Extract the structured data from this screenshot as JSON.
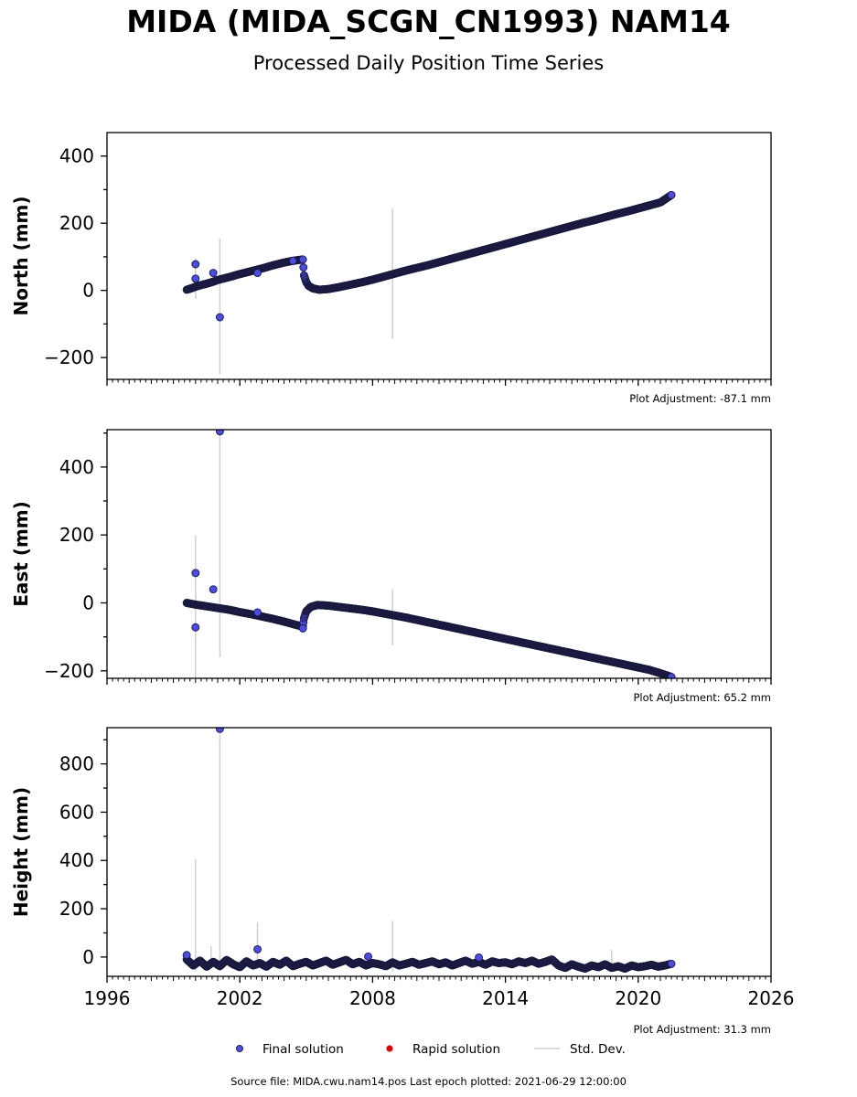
{
  "title": "MIDA (MIDA_SCGN_CN1993) NAM14",
  "subtitle": "Processed Daily Position Time Series",
  "footer": "Source file: MIDA.cwu.nam14.pos  Last epoch plotted: 2021-06-29 12:00:00",
  "colors": {
    "final": "#4b4be6",
    "final_edge": "#1a1a40",
    "rapid": "#e00000",
    "stddev": "#d0d0d0",
    "axis": "#000000"
  },
  "legend": [
    {
      "label": "Final solution",
      "marker": "final"
    },
    {
      "label": "Rapid solution",
      "marker": "rapid"
    },
    {
      "label": "Std. Dev.",
      "marker": "stddev"
    }
  ],
  "chart_data": [
    {
      "type": "scatter",
      "ylabel": "North (mm)",
      "adjustment": "Plot Adjustment: -87.1 mm",
      "xlim": [
        1996,
        2026
      ],
      "ylim": [
        -265,
        470
      ],
      "yticks": [
        -200,
        0,
        200,
        400
      ],
      "yticklabels": [
        "−200",
        "0",
        "200",
        "400"
      ],
      "xticks": [
        1996,
        2002,
        2008,
        2014,
        2020,
        2026
      ],
      "xticklabels": [],
      "series": [
        {
          "x": [
            1999.6,
            1999.8,
            2000.0,
            2000.2,
            2000.5,
            2000.8,
            2001.0,
            2001.3,
            2001.6,
            2001.9,
            2002.2,
            2002.5,
            2002.8,
            2003.1,
            2003.4,
            2003.7,
            2004.0,
            2004.3,
            2004.6,
            2004.85,
            2004.9,
            2005.0,
            2005.1,
            2005.3,
            2005.6,
            2006.0,
            2006.5,
            2007.0,
            2007.5,
            2008.0,
            2008.5,
            2009.0,
            2009.5,
            2010.0,
            2010.5,
            2011.0,
            2011.5,
            2012.0,
            2012.5,
            2013.0,
            2013.5,
            2014.0,
            2014.5,
            2015.0,
            2015.5,
            2016.0,
            2016.5,
            2017.0,
            2017.5,
            2018.0,
            2018.5,
            2019.0,
            2019.5,
            2020.0,
            2020.5,
            2021.0,
            2021.5
          ],
          "y": [
            2,
            6,
            11,
            15,
            20,
            26,
            31,
            36,
            41,
            47,
            52,
            57,
            62,
            67,
            73,
            78,
            83,
            87,
            90,
            92,
            45,
            25,
            14,
            6,
            2,
            4,
            10,
            17,
            24,
            32,
            41,
            50,
            59,
            67,
            75,
            84,
            93,
            102,
            111,
            120,
            129,
            138,
            147,
            156,
            165,
            174,
            183,
            192,
            201,
            209,
            218,
            227,
            235,
            244,
            253,
            262,
            284
          ]
        }
      ],
      "outliers": {
        "x": [
          2000.0,
          2000.0,
          2000.8,
          2001.1,
          2002.8,
          2004.4
        ],
        "y": [
          78,
          35,
          52,
          -80,
          52,
          88
        ]
      },
      "stddev_bars": [
        {
          "x": 2000.0,
          "y0": -25,
          "y1": 95
        },
        {
          "x": 2001.1,
          "y0": -250,
          "y1": 155
        },
        {
          "x": 2008.9,
          "y0": -145,
          "y1": 245
        }
      ]
    },
    {
      "type": "scatter",
      "ylabel": "East (mm)",
      "adjustment": "Plot Adjustment: 65.2 mm",
      "xlim": [
        1996,
        2026
      ],
      "ylim": [
        -222,
        510
      ],
      "yticks": [
        -200,
        0,
        200,
        400
      ],
      "yticklabels": [
        "−200",
        "0",
        "200",
        "400"
      ],
      "xticks": [
        1996,
        2002,
        2008,
        2014,
        2020,
        2026
      ],
      "xticklabels": [],
      "series": [
        {
          "x": [
            1999.6,
            2000.0,
            2000.5,
            2001.0,
            2001.5,
            2002.0,
            2002.5,
            2003.0,
            2003.5,
            2004.0,
            2004.5,
            2004.85,
            2004.9,
            2005.0,
            2005.2,
            2005.5,
            2006.0,
            2006.5,
            2007.0,
            2007.5,
            2008.0,
            2008.5,
            2009.0,
            2009.5,
            2010.0,
            2010.5,
            2011.0,
            2011.5,
            2012.0,
            2012.5,
            2013.0,
            2013.5,
            2014.0,
            2014.5,
            2015.0,
            2015.5,
            2016.0,
            2016.5,
            2017.0,
            2017.5,
            2018.0,
            2018.5,
            2019.0,
            2019.5,
            2020.0,
            2020.5,
            2021.0,
            2021.5
          ],
          "y": [
            0,
            -5,
            -10,
            -15,
            -20,
            -27,
            -33,
            -40,
            -47,
            -55,
            -64,
            -70,
            -45,
            -25,
            -12,
            -6,
            -8,
            -12,
            -16,
            -20,
            -25,
            -31,
            -37,
            -43,
            -50,
            -57,
            -64,
            -71,
            -78,
            -85,
            -92,
            -99,
            -106,
            -113,
            -120,
            -127,
            -134,
            -141,
            -148,
            -155,
            -162,
            -169,
            -176,
            -183,
            -190,
            -197,
            -207,
            -218
          ]
        }
      ],
      "outliers": {
        "x": [
          2000.0,
          2000.0,
          2000.8,
          2001.1,
          2002.8,
          2004.85
        ],
        "y": [
          88,
          -72,
          40,
          505,
          -28,
          -75
        ]
      },
      "stddev_bars": [
        {
          "x": 2000.0,
          "y0": -220,
          "y1": 200
        },
        {
          "x": 2001.1,
          "y0": -160,
          "y1": 510
        },
        {
          "x": 2008.9,
          "y0": -125,
          "y1": 40
        }
      ]
    },
    {
      "type": "scatter",
      "ylabel": "Height (mm)",
      "adjustment": "Plot Adjustment: 31.3 mm",
      "xlim": [
        1996,
        2026
      ],
      "ylim": [
        -80,
        950
      ],
      "yticks": [
        0,
        200,
        400,
        600,
        800
      ],
      "yticklabels": [
        "0",
        "200",
        "400",
        "600",
        "800"
      ],
      "xticks": [
        1996,
        2002,
        2008,
        2014,
        2020,
        2026
      ],
      "xticklabels": [
        "1996",
        "2002",
        "2008",
        "2014",
        "2020",
        "2026"
      ],
      "series": [
        {
          "x": [
            1999.6,
            1999.9,
            2000.2,
            2000.5,
            2000.8,
            2001.1,
            2001.4,
            2001.7,
            2002.0,
            2002.3,
            2002.6,
            2002.9,
            2003.2,
            2003.5,
            2003.8,
            2004.1,
            2004.4,
            2004.7,
            2005.0,
            2005.3,
            2005.6,
            2005.9,
            2006.2,
            2006.5,
            2006.8,
            2007.1,
            2007.4,
            2007.7,
            2008.0,
            2008.3,
            2008.6,
            2008.9,
            2009.2,
            2009.5,
            2009.8,
            2010.1,
            2010.4,
            2010.7,
            2011.0,
            2011.3,
            2011.6,
            2011.9,
            2012.2,
            2012.5,
            2012.8,
            2013.1,
            2013.4,
            2013.7,
            2014.0,
            2014.3,
            2014.6,
            2014.9,
            2015.2,
            2015.5,
            2015.8,
            2016.1,
            2016.4,
            2016.7,
            2017.0,
            2017.3,
            2017.6,
            2017.9,
            2018.2,
            2018.5,
            2018.8,
            2019.1,
            2019.4,
            2019.7,
            2020.0,
            2020.3,
            2020.6,
            2020.9,
            2021.2,
            2021.5
          ],
          "y": [
            -10,
            -35,
            -15,
            -40,
            -20,
            -38,
            -12,
            -30,
            -42,
            -18,
            -35,
            -25,
            -40,
            -20,
            -32,
            -15,
            -38,
            -28,
            -20,
            -35,
            -25,
            -15,
            -32,
            -22,
            -12,
            -30,
            -20,
            -35,
            -25,
            -30,
            -38,
            -22,
            -35,
            -28,
            -20,
            -32,
            -25,
            -18,
            -30,
            -22,
            -35,
            -25,
            -15,
            -28,
            -20,
            -32,
            -18,
            -25,
            -22,
            -30,
            -18,
            -25,
            -15,
            -28,
            -20,
            -10,
            -35,
            -45,
            -30,
            -40,
            -48,
            -35,
            -42,
            -30,
            -45,
            -38,
            -48,
            -35,
            -42,
            -38,
            -32,
            -40,
            -35,
            -28
          ]
        }
      ],
      "outliers": {
        "x": [
          1999.6,
          2001.1,
          2002.8,
          2007.8,
          2012.8
        ],
        "y": [
          8,
          945,
          32,
          2,
          -2
        ]
      },
      "stddev_bars": [
        {
          "x": 2000.0,
          "y0": -60,
          "y1": 405
        },
        {
          "x": 2000.7,
          "y0": -40,
          "y1": 45
        },
        {
          "x": 2001.1,
          "y0": -60,
          "y1": 950
        },
        {
          "x": 2002.8,
          "y0": -50,
          "y1": 145
        },
        {
          "x": 2008.9,
          "y0": -60,
          "y1": 150
        },
        {
          "x": 2018.8,
          "y0": -60,
          "y1": 30
        }
      ]
    }
  ]
}
